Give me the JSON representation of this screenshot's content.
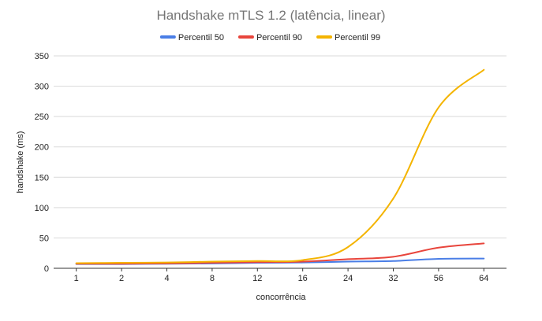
{
  "chart_data": {
    "type": "line",
    "title": "Handshake mTLS 1.2 (latência, linear)",
    "xlabel": "concorrência",
    "ylabel": "handshake (ms)",
    "categories": [
      "1",
      "2",
      "4",
      "8",
      "12",
      "16",
      "24",
      "32",
      "56",
      "64"
    ],
    "ylim": [
      0,
      350
    ],
    "yticks": [
      0,
      50,
      100,
      150,
      200,
      250,
      300,
      350
    ],
    "grid": true,
    "legend_position": "top",
    "series": [
      {
        "name": "Percentil 50",
        "color": "#4a7ee6",
        "values": [
          7,
          7,
          7.5,
          8,
          9,
          9.5,
          11,
          12,
          15.5,
          16
        ]
      },
      {
        "name": "Percentil 90",
        "color": "#e8453c",
        "values": [
          7.5,
          7.5,
          8,
          9,
          10,
          11,
          15,
          19,
          34,
          41
        ]
      },
      {
        "name": "Percentil 99",
        "color": "#f4b400",
        "values": [
          8.5,
          9,
          9.5,
          11,
          12,
          13.5,
          35,
          115,
          265,
          327
        ]
      }
    ]
  }
}
